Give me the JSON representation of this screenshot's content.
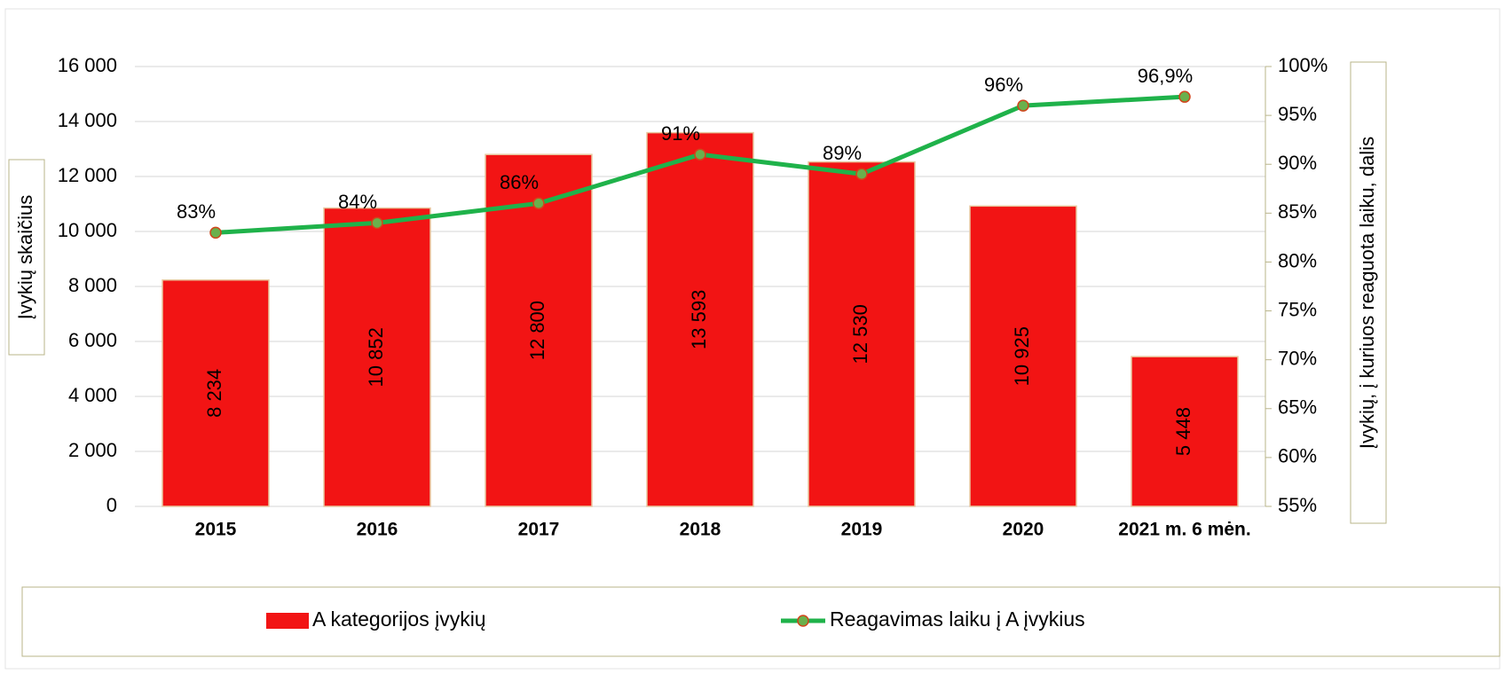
{
  "chart_data": {
    "type": "bar",
    "categories": [
      "2015",
      "2016",
      "2017",
      "2018",
      "2019",
      "2020",
      "2021 m. 6 mėn."
    ],
    "series": [
      {
        "name": "A kategorijos įvykių",
        "type": "bar",
        "color": "#f21414",
        "values": [
          8234,
          10852,
          12800,
          13593,
          12530,
          10925,
          5448
        ],
        "value_labels": [
          "8 234",
          "10 852",
          "12 800",
          "13 593",
          "12 530",
          "10 925",
          "5 448"
        ]
      },
      {
        "name": "Reagavimas laiku į A įvykius",
        "type": "line",
        "axis": "y2",
        "color": "#1fb24a",
        "marker_color": "#6ab04c",
        "marker_edge": "#d0451b",
        "values": [
          83,
          84,
          86,
          91,
          89,
          96,
          96.9
        ],
        "value_labels": [
          "83%",
          "84%",
          "86%",
          "91%",
          "89%",
          "96%",
          "96,9%"
        ]
      }
    ],
    "ylabel": "Įvykių skaičius",
    "y2label": "Įvykių, į kuriuos reaguota laiku, dalis",
    "ylim": [
      0,
      16000
    ],
    "yticks": [
      0,
      {
        "value": 2000,
        "label": "2 000"
      },
      {
        "value": 4000,
        "label": "4 000"
      },
      {
        "value": 6000,
        "label": "6 000"
      },
      {
        "value": 8000,
        "label": "8 000"
      },
      {
        "value": 10000,
        "label": "10 000"
      },
      {
        "value": 12000,
        "label": "12 000"
      },
      {
        "value": 14000,
        "label": "14 000"
      },
      {
        "value": 16000,
        "label": "16 000"
      }
    ],
    "y2lim": [
      55,
      100
    ],
    "y2ticks": [
      {
        "value": 55,
        "label": "55%"
      },
      {
        "value": 60,
        "label": "60%"
      },
      {
        "value": 65,
        "label": "65%"
      },
      {
        "value": 70,
        "label": "70%"
      },
      {
        "value": 75,
        "label": "75%"
      },
      {
        "value": 80,
        "label": "80%"
      },
      {
        "value": 85,
        "label": "85%"
      },
      {
        "value": 90,
        "label": "90%"
      },
      {
        "value": 95,
        "label": "95%"
      },
      {
        "value": 100,
        "label": "100%"
      }
    ],
    "grid": true,
    "legend": "bottom"
  }
}
